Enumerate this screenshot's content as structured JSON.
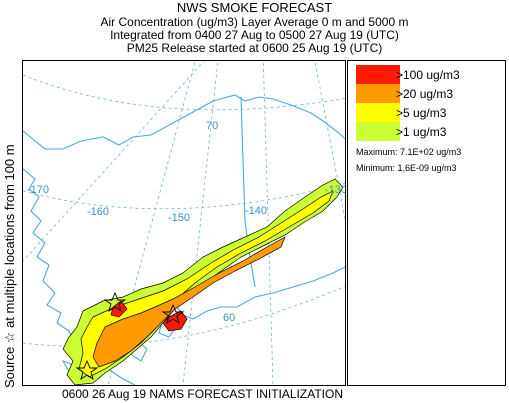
{
  "header": {
    "title": "NWS SMOKE FORECAST",
    "line2": "Air Concentration (ug/m3) Layer Average    0 m and  5000 m",
    "line3": "Integrated from 0400 27 Aug to 0500 27 Aug 19 (UTC)",
    "line4": "PM25 Release started at 0600 25 Aug 19 (UTC)"
  },
  "side_label": "Source ☆  at multiple locations   from  100 m",
  "footer": "0600 26 Aug 19 NAMS FORECAST INITIALIZATION",
  "legend": {
    "items": [
      {
        "label": ">100 ug/m3",
        "color": "#ff1a00"
      },
      {
        "label": ">20 ug/m3",
        "color": "#ff9a00"
      },
      {
        "label": ">5 ug/m3",
        "color": "#ffff00"
      },
      {
        "label": ">1 ug/m3",
        "color": "#ccff33"
      }
    ],
    "maximum": "Maximum: 7.1E+02 ug/m3",
    "minimum": "Minimum: 1.6E-09 ug/m3"
  },
  "map": {
    "longitude_labels": [
      "-170",
      "-160",
      "-150",
      "-140",
      "-130"
    ],
    "latitude_labels": [
      "70",
      "60"
    ],
    "colors": {
      "coast": "#4fa8d8",
      "grid": "#6fb7dd",
      "contour": "#000000"
    }
  }
}
